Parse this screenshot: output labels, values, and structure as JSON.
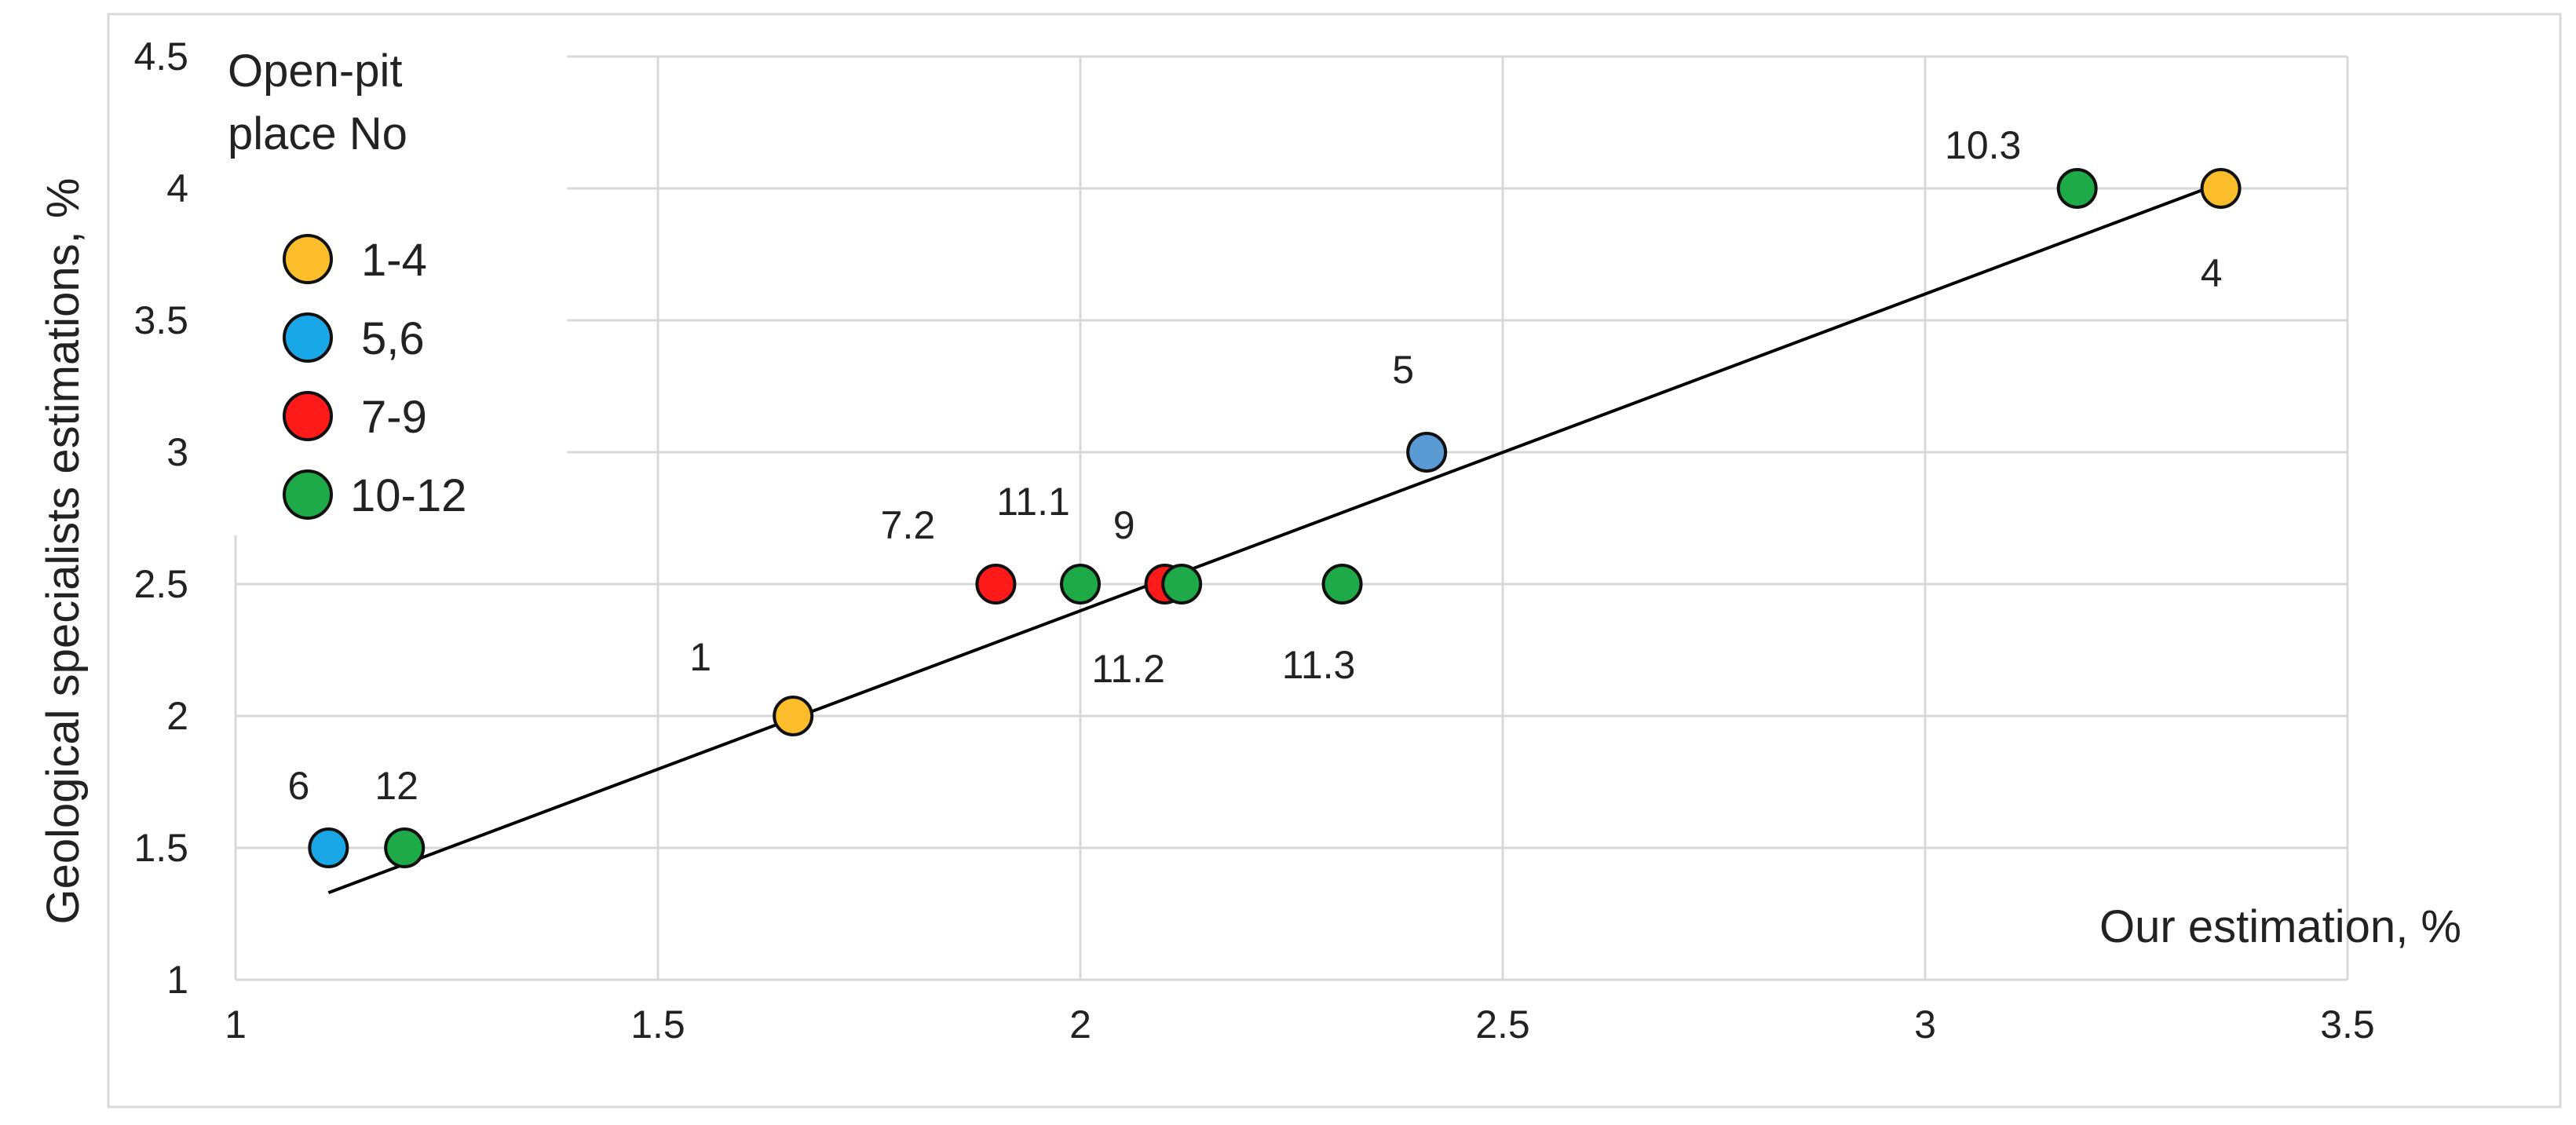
{
  "chart_data": {
    "type": "scatter",
    "title": "",
    "xlabel": "Our estimation, %",
    "ylabel": "Geological specialists estimations, %",
    "xlim": [
      1,
      3.5
    ],
    "ylim": [
      1,
      4.5
    ],
    "xticks": [
      "1",
      "1.5",
      "2",
      "2.5",
      "3",
      "3.5"
    ],
    "yticks": [
      "1",
      "1.5",
      "2",
      "2.5",
      "3",
      "3.5",
      "4",
      "4.5"
    ],
    "grid": true,
    "legend": {
      "title": "Open-pit place No",
      "title_lines": [
        "Open-pit",
        "place No"
      ],
      "position": "top-left",
      "entries": [
        {
          "label": "1-4",
          "color": "#fbbd2a"
        },
        {
          "label": "5,6",
          "color": "#1aa7e8"
        },
        {
          "label": "7-9",
          "color": "#ff1a1a"
        },
        {
          "label": "10-12",
          "color": "#1faa4a"
        }
      ]
    },
    "points": [
      {
        "label": "6",
        "x": 1.11,
        "y": 1.5,
        "group": "5,6",
        "color": "#1aa7e8"
      },
      {
        "label": "12",
        "x": 1.2,
        "y": 1.5,
        "group": "10-12",
        "color": "#1faa4a"
      },
      {
        "label": "1",
        "x": 1.66,
        "y": 2.0,
        "group": "1-4",
        "color": "#fbbd2a"
      },
      {
        "label": "7.2",
        "x": 1.9,
        "y": 2.5,
        "group": "7-9",
        "color": "#ff1a1a"
      },
      {
        "label": "11.1",
        "x": 2.0,
        "y": 2.5,
        "group": "10-12",
        "color": "#1faa4a"
      },
      {
        "label": "9",
        "x": 2.1,
        "y": 2.5,
        "group": "7-9",
        "color": "#ff1a1a"
      },
      {
        "label": "11.2",
        "x": 2.12,
        "y": 2.5,
        "group": "10-12",
        "color": "#1faa4a"
      },
      {
        "label": "11.3",
        "x": 2.31,
        "y": 2.5,
        "group": "10-12",
        "color": "#1faa4a"
      },
      {
        "label": "5",
        "x": 2.41,
        "y": 3.0,
        "group": "5,6",
        "color": "#5b9bd5"
      },
      {
        "label": "10.3",
        "x": 3.18,
        "y": 4.0,
        "group": "10-12",
        "color": "#1faa4a"
      },
      {
        "label": "4",
        "x": 3.35,
        "y": 4.0,
        "group": "1-4",
        "color": "#fbbd2a"
      }
    ],
    "trendline": {
      "x": [
        1.11,
        3.35
      ],
      "y": [
        1.33,
        4.02
      ],
      "color": "#000000"
    }
  }
}
